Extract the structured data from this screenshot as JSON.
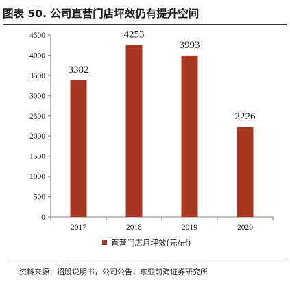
{
  "figure": {
    "title": "图表 50. 公司直营门店坪效仍有提升空间",
    "source": "资料来源：招股说明书，公司公告，东亚前海证券研究所"
  },
  "colors": {
    "bar": "#A93620",
    "axis": "#7f7f7f",
    "rule": "#3a3a3a"
  },
  "chart_data": {
    "type": "bar",
    "title": "图表 50. 公司直营门店坪效仍有提升空间",
    "xlabel": "",
    "ylabel": "",
    "categories": [
      "2017",
      "2018",
      "2019",
      "2020"
    ],
    "series": [
      {
        "name": "直营门店月坪效(元/㎡)",
        "values": [
          3382,
          4253,
          3993,
          2226
        ]
      }
    ],
    "data_labels": [
      "3382",
      "4253",
      "3993",
      "2226"
    ],
    "ylim": [
      0,
      4500
    ],
    "yticks": [
      0,
      500,
      1000,
      1500,
      2000,
      2500,
      3000,
      3500,
      4000,
      4500
    ],
    "grid": false,
    "legend_position": "bottom"
  }
}
